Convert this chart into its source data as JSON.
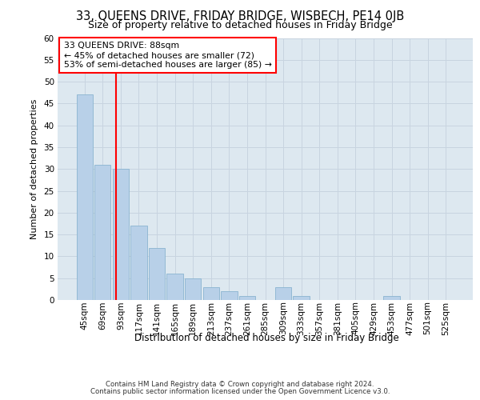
{
  "title": "33, QUEENS DRIVE, FRIDAY BRIDGE, WISBECH, PE14 0JB",
  "subtitle": "Size of property relative to detached houses in Friday Bridge",
  "xlabel": "Distribution of detached houses by size in Friday Bridge",
  "ylabel": "Number of detached properties",
  "footer_line1": "Contains HM Land Registry data © Crown copyright and database right 2024.",
  "footer_line2": "Contains public sector information licensed under the Open Government Licence v3.0.",
  "annotation_line1": "33 QUEENS DRIVE: 88sqm",
  "annotation_line2": "← 45% of detached houses are smaller (72)",
  "annotation_line3": "53% of semi-detached houses are larger (85) →",
  "bar_categories": [
    "45sqm",
    "69sqm",
    "93sqm",
    "117sqm",
    "141sqm",
    "165sqm",
    "189sqm",
    "213sqm",
    "237sqm",
    "261sqm",
    "285sqm",
    "309sqm",
    "333sqm",
    "357sqm",
    "381sqm",
    "405sqm",
    "429sqm",
    "453sqm",
    "477sqm",
    "501sqm",
    "525sqm"
  ],
  "bar_values": [
    47,
    31,
    30,
    17,
    12,
    6,
    5,
    3,
    2,
    1,
    0,
    3,
    1,
    0,
    0,
    0,
    0,
    1,
    0,
    0,
    0
  ],
  "bar_color": "#b8d0e8",
  "bar_edge_color": "#8ab4d0",
  "grid_color": "#c8d4e0",
  "background_color": "#dde8f0",
  "ylim": [
    0,
    60
  ],
  "yticks": [
    0,
    5,
    10,
    15,
    20,
    25,
    30,
    35,
    40,
    45,
    50,
    55,
    60
  ]
}
